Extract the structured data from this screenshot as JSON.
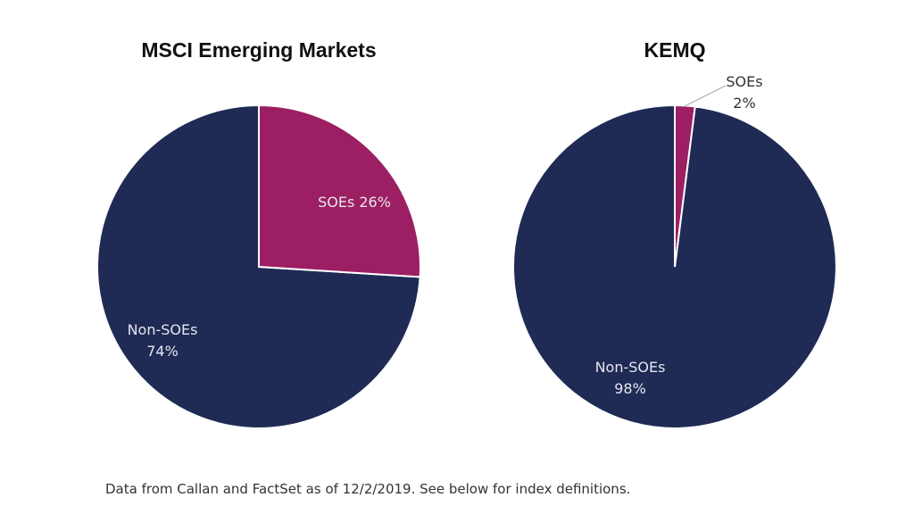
{
  "chart_data": [
    {
      "type": "pie",
      "title": "MSCI Emerging Markets",
      "slices": [
        {
          "label": "SOEs",
          "value_text": "26%",
          "value": 26,
          "color": "#9c1f63"
        },
        {
          "label": "Non-SOEs",
          "value_text": "74%",
          "value": 74,
          "color": "#1f2a55"
        }
      ]
    },
    {
      "type": "pie",
      "title": "KEMQ",
      "slices": [
        {
          "label": "SOEs",
          "value_text": "2%",
          "value": 2,
          "color": "#9c1f63"
        },
        {
          "label": "Non-SOEs",
          "value_text": "98%",
          "value": 98,
          "color": "#1f2a55"
        }
      ]
    }
  ],
  "footnote": "Data from Callan and FactSet as of 12/2/2019.  See below for index definitions."
}
